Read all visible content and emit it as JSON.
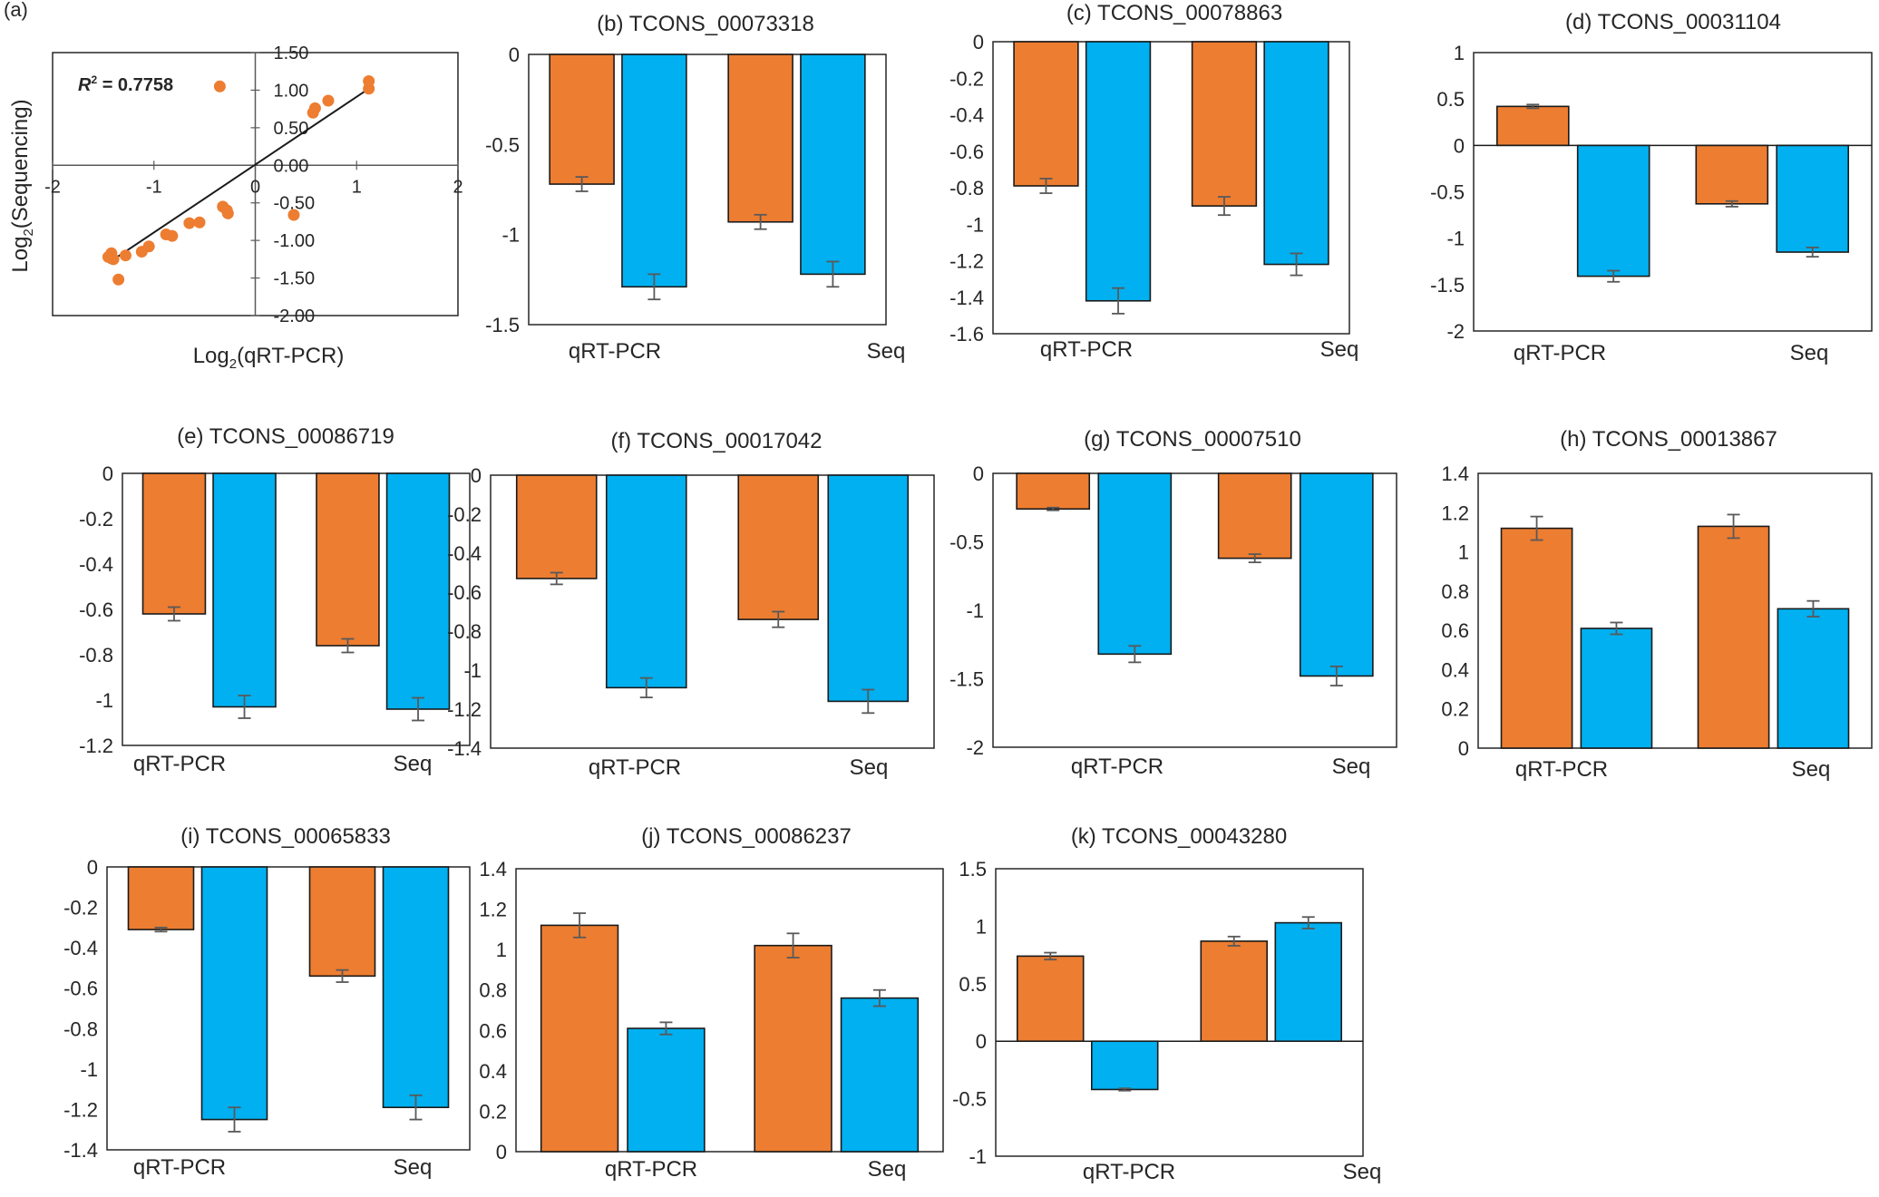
{
  "colors": {
    "orange": "#ED7D31",
    "blue": "#00B0F0",
    "axis": "#595959",
    "error": "#595959",
    "frame": "#262626"
  },
  "chart_data": [
    {
      "panel": "(a)",
      "type": "scatter",
      "title": "",
      "xlabel_prefix": "Log",
      "xlabel_sub": "2",
      "xlabel_suffix": "(qRT-PCR)",
      "ylabel_prefix": "Log",
      "ylabel_sub": "2",
      "ylabel_suffix": "(Sequencing)",
      "r2_label": "R",
      "r2_sup": "2",
      "r2_value": " = 0.7758",
      "xlim": [
        -2,
        2
      ],
      "ylim": [
        -2,
        1.5
      ],
      "xticks": [
        -2,
        -1,
        0,
        1,
        2
      ],
      "xtick_labels": [
        "-2",
        "-1",
        "0",
        "1",
        "2"
      ],
      "yticks": [
        1.5,
        1.0,
        0.5,
        0.0,
        -0.5,
        -1.0,
        -1.5,
        -2.0
      ],
      "ytick_labels": [
        "1.50",
        "1.00",
        "0.50",
        "0.00",
        "-0.50",
        "-1.00",
        "-1.50",
        "-2.00"
      ],
      "points": [
        {
          "x": -1.45,
          "y": -1.22
        },
        {
          "x": -1.42,
          "y": -1.17
        },
        {
          "x": -1.4,
          "y": -1.25
        },
        {
          "x": -1.35,
          "y": -1.52
        },
        {
          "x": -1.28,
          "y": -1.2
        },
        {
          "x": -1.12,
          "y": -1.15
        },
        {
          "x": -1.05,
          "y": -1.08
        },
        {
          "x": -0.88,
          "y": -0.92
        },
        {
          "x": -0.82,
          "y": -0.94
        },
        {
          "x": -0.65,
          "y": -0.77
        },
        {
          "x": -0.55,
          "y": -0.76
        },
        {
          "x": -0.35,
          "y": 1.05
        },
        {
          "x": -0.32,
          "y": -0.55
        },
        {
          "x": -0.28,
          "y": -0.6
        },
        {
          "x": -0.27,
          "y": -0.64
        },
        {
          "x": 0.38,
          "y": -0.66
        },
        {
          "x": 0.57,
          "y": 0.7
        },
        {
          "x": 0.59,
          "y": 0.76
        },
        {
          "x": 0.72,
          "y": 0.86
        },
        {
          "x": 1.12,
          "y": 1.02
        },
        {
          "x": 1.12,
          "y": 1.12
        }
      ],
      "trendline": {
        "x": [
          -1.45,
          1.12
        ],
        "y": [
          -1.3,
          1.02
        ]
      }
    },
    {
      "panel": "(b)",
      "type": "bar",
      "title": "(b) TCONS_00073318",
      "categories": [
        "qRT-PCR",
        "Seq"
      ],
      "series": [
        {
          "name": "series-1",
          "values": [
            -0.72,
            -0.93
          ],
          "errors": [
            0.04,
            0.04
          ]
        },
        {
          "name": "series-2",
          "values": [
            -1.29,
            -1.22
          ],
          "errors": [
            0.07,
            0.07
          ]
        }
      ],
      "ylim": [
        -1.5,
        0
      ],
      "yticks": [
        0,
        -0.5,
        -1,
        -1.5
      ],
      "ytick_labels": [
        "0",
        "-0.5",
        "-1",
        "-1.5"
      ]
    },
    {
      "panel": "(c)",
      "type": "bar",
      "title": "(c) TCONS_00078863",
      "categories": [
        "qRT-PCR",
        "Seq"
      ],
      "series": [
        {
          "name": "series-1",
          "values": [
            -0.79,
            -0.9
          ],
          "errors": [
            0.04,
            0.05
          ]
        },
        {
          "name": "series-2",
          "values": [
            -1.42,
            -1.22
          ],
          "errors": [
            0.07,
            0.06
          ]
        }
      ],
      "ylim": [
        -1.6,
        0
      ],
      "yticks": [
        0,
        -0.2,
        -0.4,
        -0.6,
        -0.8,
        -1,
        -1.2,
        -1.4,
        -1.6
      ],
      "ytick_labels": [
        "0",
        "-0.2",
        "-0.4",
        "-0.6",
        "-0.8",
        "-1",
        "-1.2",
        "-1.4",
        "-1.6"
      ]
    },
    {
      "panel": "(d)",
      "type": "bar",
      "title": "(d) TCONS_00031104",
      "categories": [
        "qRT-PCR",
        "Seq"
      ],
      "series": [
        {
          "name": "series-1",
          "values": [
            0.42,
            -0.63
          ],
          "errors": [
            0.02,
            0.03
          ]
        },
        {
          "name": "series-2",
          "values": [
            -1.41,
            -1.15
          ],
          "errors": [
            0.06,
            0.05
          ]
        }
      ],
      "ylim": [
        -2,
        1
      ],
      "yticks": [
        1,
        0.5,
        0,
        -0.5,
        -1,
        -1.5,
        -2
      ],
      "ytick_labels": [
        "1",
        "0.5",
        "0",
        "-0.5",
        "-1",
        "-1.5",
        "-2"
      ]
    },
    {
      "panel": "(e)",
      "type": "bar",
      "title": "(e) TCONS_00086719",
      "categories": [
        "qRT-PCR",
        "Seq"
      ],
      "series": [
        {
          "name": "series-1",
          "values": [
            -0.62,
            -0.76
          ],
          "errors": [
            0.03,
            0.03
          ]
        },
        {
          "name": "series-2",
          "values": [
            -1.03,
            -1.04
          ],
          "errors": [
            0.05,
            0.05
          ]
        }
      ],
      "ylim": [
        -1.2,
        0
      ],
      "yticks": [
        0,
        -0.2,
        -0.4,
        -0.6,
        -0.8,
        -1,
        -1.2
      ],
      "ytick_labels": [
        "0",
        "-0.2",
        "-0.4",
        "-0.6",
        "-0.8",
        "-1",
        "-1.2"
      ]
    },
    {
      "panel": "(f)",
      "type": "bar",
      "title": "(f) TCONS_00017042",
      "categories": [
        "qRT-PCR",
        "Seq"
      ],
      "series": [
        {
          "name": "series-1",
          "values": [
            -0.53,
            -0.74
          ],
          "errors": [
            0.03,
            0.04
          ]
        },
        {
          "name": "series-2",
          "values": [
            -1.09,
            -1.16
          ],
          "errors": [
            0.05,
            0.06
          ]
        }
      ],
      "ylim": [
        -1.4,
        0
      ],
      "yticks": [
        0,
        -0.2,
        -0.4,
        -0.6,
        -0.8,
        -1,
        -1.2,
        -1.4
      ],
      "ytick_labels": [
        "0",
        "-0.2",
        "-0.4",
        "-0.6",
        "-0.8",
        "-1",
        "-1.2",
        "-1.4"
      ]
    },
    {
      "panel": "(g)",
      "type": "bar",
      "title": "(g) TCONS_00007510",
      "categories": [
        "qRT-PCR",
        "Seq"
      ],
      "series": [
        {
          "name": "series-1",
          "values": [
            -0.26,
            -0.62
          ],
          "errors": [
            0.01,
            0.03
          ]
        },
        {
          "name": "series-2",
          "values": [
            -1.32,
            -1.48
          ],
          "errors": [
            0.06,
            0.07
          ]
        }
      ],
      "ylim": [
        -2,
        0
      ],
      "yticks": [
        0,
        -0.5,
        -1,
        -1.5,
        -2
      ],
      "ytick_labels": [
        "0",
        "-0.5",
        "-1",
        "-1.5",
        "-2"
      ]
    },
    {
      "panel": "(h)",
      "type": "bar",
      "title": "(h) TCONS_00013867",
      "categories": [
        "qRT-PCR",
        "Seq"
      ],
      "series": [
        {
          "name": "series-1",
          "values": [
            1.12,
            1.13
          ],
          "errors": [
            0.06,
            0.06
          ]
        },
        {
          "name": "series-2",
          "values": [
            0.61,
            0.71
          ],
          "errors": [
            0.03,
            0.04
          ]
        }
      ],
      "ylim": [
        0,
        1.4
      ],
      "yticks": [
        1.4,
        1.2,
        1,
        0.8,
        0.6,
        0.4,
        0.2,
        0
      ],
      "ytick_labels": [
        "1.4",
        "1.2",
        "1",
        "0.8",
        "0.6",
        "0.4",
        "0.2",
        "0"
      ]
    },
    {
      "panel": "(i)",
      "type": "bar",
      "title": "(i) TCONS_00065833",
      "categories": [
        "qRT-PCR",
        "Seq"
      ],
      "series": [
        {
          "name": "series-1",
          "values": [
            -0.31,
            -0.54
          ],
          "errors": [
            0.01,
            0.03
          ]
        },
        {
          "name": "series-2",
          "values": [
            -1.25,
            -1.19
          ],
          "errors": [
            0.06,
            0.06
          ]
        }
      ],
      "ylim": [
        -1.4,
        0
      ],
      "yticks": [
        0,
        -0.2,
        -0.4,
        -0.6,
        -0.8,
        -1,
        -1.2,
        -1.4
      ],
      "ytick_labels": [
        "0",
        "-0.2",
        "-0.4",
        "-0.6",
        "-0.8",
        "-1",
        "-1.2",
        "-1.4"
      ]
    },
    {
      "panel": "(j)",
      "type": "bar",
      "title": "(j) TCONS_00086237",
      "categories": [
        "qRT-PCR",
        "Seq"
      ],
      "series": [
        {
          "name": "series-1",
          "values": [
            1.12,
            1.02
          ],
          "errors": [
            0.06,
            0.06
          ]
        },
        {
          "name": "series-2",
          "values": [
            0.61,
            0.76
          ],
          "errors": [
            0.03,
            0.04
          ]
        }
      ],
      "ylim": [
        0,
        1.4
      ],
      "yticks": [
        1.4,
        1.2,
        1,
        0.8,
        0.6,
        0.4,
        0.2,
        0
      ],
      "ytick_labels": [
        "1.4",
        "1.2",
        "1",
        "0.8",
        "0.6",
        "0.4",
        "0.2",
        "0"
      ]
    },
    {
      "panel": "(k)",
      "type": "bar",
      "title": "(k) TCONS_00043280",
      "categories": [
        "qRT-PCR",
        "Seq"
      ],
      "series": [
        {
          "name": "series-1",
          "values": [
            0.74,
            0.87
          ],
          "errors": [
            0.03,
            0.04
          ]
        },
        {
          "name": "series-2",
          "values": [
            -0.42,
            1.03
          ],
          "errors": [
            0.01,
            0.05
          ]
        }
      ],
      "ylim": [
        -1,
        1.5
      ],
      "yticks": [
        1.5,
        1,
        0.5,
        0,
        -0.5,
        -1
      ],
      "ytick_labels": [
        "1.5",
        "1",
        "0.5",
        "0",
        "-0.5",
        "-1"
      ]
    }
  ]
}
